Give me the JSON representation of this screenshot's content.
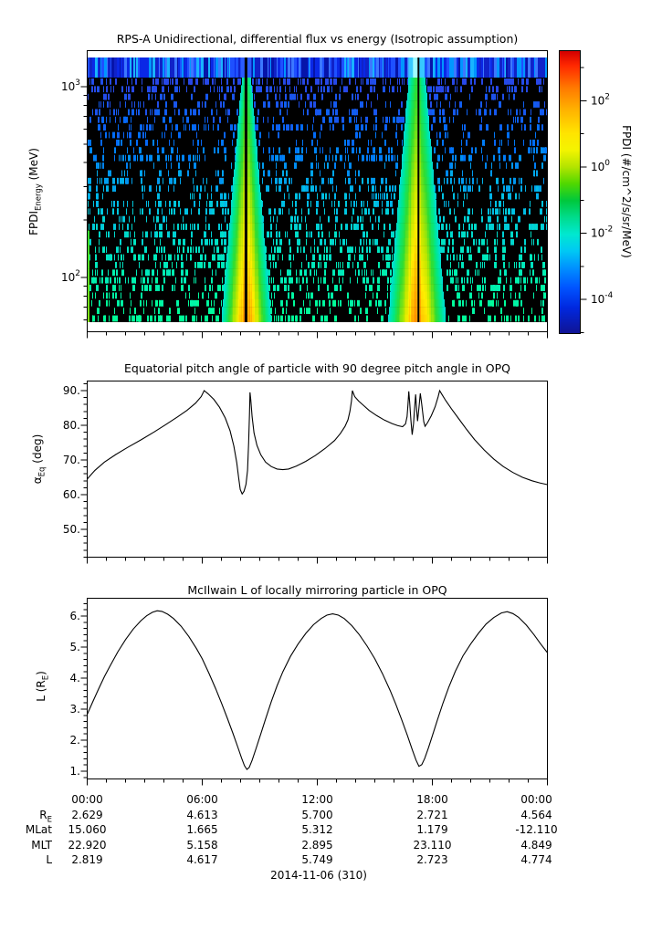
{
  "background": "#ffffff",
  "foreground": "#000000",
  "date_label": "2014-11-06 (310)",
  "xaxis": {
    "major_hours": [
      0,
      6,
      12,
      18,
      24
    ],
    "major_labels": [
      "00:00",
      "06:00",
      "12:00",
      "18:00",
      "00:00"
    ],
    "minor_step_hours": 1
  },
  "ephemeris_table": {
    "rows": [
      {
        "label_pre": "R",
        "label_sub": "E",
        "values": [
          "2.629",
          "4.613",
          "5.700",
          "2.721",
          "4.564"
        ]
      },
      {
        "label_pre": "MLat",
        "label_sub": "",
        "values": [
          "15.060",
          "1.665",
          "5.312",
          "1.179",
          "-12.110"
        ]
      },
      {
        "label_pre": "MLT",
        "label_sub": "",
        "values": [
          "22.920",
          "5.158",
          "2.895",
          "23.110",
          "4.849"
        ]
      },
      {
        "label_pre": "L",
        "label_sub": "",
        "values": [
          "2.819",
          "4.617",
          "5.749",
          "2.723",
          "4.774"
        ]
      }
    ]
  },
  "chart_data": [
    {
      "type": "heatmap",
      "title": "RPS-A Unidirectional, differential flux vs energy (Isotropic assumption)",
      "ylabel_pre": "FPDI",
      "ylabel_sub": "Energy",
      "ylabel_post": " (MeV)",
      "y_scale": "log",
      "y_range_mev": [
        50,
        1500
      ],
      "y_major_tick_exponents": [
        3,
        2
      ],
      "x_range_hours": [
        0,
        24
      ],
      "colorbar": {
        "label": "FPDI (#/cm^2/s/sr/MeV)",
        "scale": "log",
        "major_tick_exponents": [
          2,
          0,
          -2,
          -4
        ],
        "minor_tick_exponents": [
          3,
          1,
          -1,
          -3,
          -5
        ],
        "colormap": "jet",
        "top_color": "#d40000",
        "bottom_color": "#101496"
      },
      "features": {
        "background": "black (zero counts) with sparse speckles; speckle color trends royal blue at high energies to cyan/spring-green at low energies",
        "top_energy_band": {
          "description": "continuous blue band across all times in highest energy bin",
          "base_color": "#0a1ed2"
        },
        "perigee_plumes": [
          {
            "center_hour": 8.28,
            "half_width_hours_top": 0.25,
            "half_width_hours_bottom": 1.3,
            "center_gap": "black data-gap line",
            "colors": "cyan edge, green, yellow, orange core at lowest energies"
          },
          {
            "center_hour": 17.18,
            "half_width_hours_top": 0.45,
            "half_width_hours_bottom": 1.5,
            "center_gap": "black data-gap line",
            "colors": "cyan edge, green, yellow, orange core at lowest energies"
          }
        ],
        "left_edge_strip": {
          "hours": [
            0,
            0.15
          ],
          "color": "green, lowest energy rows only"
        }
      }
    },
    {
      "type": "line",
      "title": "Equatorial pitch angle of particle with 90 degree pitch angle in OPQ",
      "ylabel_pre": "α",
      "ylabel_sub": "Eq",
      "ylabel_post": " (deg)",
      "y_tick_values": [
        90,
        80,
        70,
        60,
        50
      ],
      "y_tick_labels": [
        "90.",
        "80.",
        "70.",
        "60.",
        "50."
      ],
      "y_minor_step": 2,
      "ylim": [
        42,
        93
      ],
      "x_units": "hours UTC",
      "points": [
        [
          0,
          64.5
        ],
        [
          0.4,
          67.0
        ],
        [
          0.9,
          69.4
        ],
        [
          1.5,
          71.6
        ],
        [
          2.1,
          73.6
        ],
        [
          2.8,
          75.8
        ],
        [
          3.5,
          78.1
        ],
        [
          4.1,
          80.2
        ],
        [
          4.7,
          82.4
        ],
        [
          5.2,
          84.3
        ],
        [
          5.65,
          86.4
        ],
        [
          5.95,
          88.3
        ],
        [
          6.1,
          90.0
        ],
        [
          6.3,
          89.1
        ],
        [
          6.6,
          87.5
        ],
        [
          6.9,
          85.2
        ],
        [
          7.2,
          82.1
        ],
        [
          7.45,
          78.4
        ],
        [
          7.65,
          74.0
        ],
        [
          7.8,
          69.2
        ],
        [
          7.9,
          64.8
        ],
        [
          7.98,
          61.5
        ],
        [
          8.08,
          60.2
        ],
        [
          8.18,
          61.0
        ],
        [
          8.28,
          63.0
        ],
        [
          8.36,
          67.0
        ],
        [
          8.42,
          75.0
        ],
        [
          8.46,
          83.0
        ],
        [
          8.49,
          89.5
        ],
        [
          8.53,
          87.5
        ],
        [
          8.6,
          82.5
        ],
        [
          8.7,
          77.8
        ],
        [
          8.85,
          74.2
        ],
        [
          9.05,
          71.5
        ],
        [
          9.3,
          69.4
        ],
        [
          9.6,
          68.1
        ],
        [
          9.9,
          67.4
        ],
        [
          10.2,
          67.2
        ],
        [
          10.5,
          67.4
        ],
        [
          10.9,
          68.2
        ],
        [
          11.4,
          69.6
        ],
        [
          11.9,
          71.3
        ],
        [
          12.4,
          73.3
        ],
        [
          12.9,
          75.6
        ],
        [
          13.2,
          77.6
        ],
        [
          13.45,
          79.7
        ],
        [
          13.6,
          81.6
        ],
        [
          13.7,
          84.0
        ],
        [
          13.78,
          87.0
        ],
        [
          13.83,
          90.0
        ],
        [
          13.95,
          88.3
        ],
        [
          14.15,
          87.0
        ],
        [
          14.4,
          85.8
        ],
        [
          14.7,
          84.3
        ],
        [
          15.1,
          82.8
        ],
        [
          15.5,
          81.5
        ],
        [
          15.9,
          80.5
        ],
        [
          16.2,
          79.9
        ],
        [
          16.45,
          79.6
        ],
        [
          16.6,
          80.4
        ],
        [
          16.68,
          82.5
        ],
        [
          16.73,
          86.0
        ],
        [
          16.77,
          89.8
        ],
        [
          16.82,
          86.5
        ],
        [
          16.88,
          81.5
        ],
        [
          16.95,
          77.3
        ],
        [
          17.02,
          80.5
        ],
        [
          17.08,
          85.5
        ],
        [
          17.13,
          88.9
        ],
        [
          17.18,
          84.5
        ],
        [
          17.23,
          81.2
        ],
        [
          17.3,
          85.0
        ],
        [
          17.37,
          89.2
        ],
        [
          17.45,
          86.0
        ],
        [
          17.55,
          81.0
        ],
        [
          17.62,
          79.7
        ],
        [
          17.75,
          80.8
        ],
        [
          17.95,
          82.8
        ],
        [
          18.15,
          85.4
        ],
        [
          18.3,
          88.2
        ],
        [
          18.38,
          90.0
        ],
        [
          18.5,
          88.9
        ],
        [
          18.7,
          87.1
        ],
        [
          19.0,
          84.7
        ],
        [
          19.4,
          81.7
        ],
        [
          19.8,
          78.7
        ],
        [
          20.2,
          75.9
        ],
        [
          20.7,
          72.9
        ],
        [
          21.2,
          70.3
        ],
        [
          21.7,
          68.1
        ],
        [
          22.2,
          66.4
        ],
        [
          22.7,
          65.0
        ],
        [
          23.2,
          64.0
        ],
        [
          23.6,
          63.4
        ],
        [
          24,
          62.9
        ]
      ]
    },
    {
      "type": "line",
      "title": "McIlwain L of locally mirroring particle in OPQ",
      "ylabel_pre": "L (R",
      "ylabel_sub": "E",
      "ylabel_post": ")",
      "y_tick_values": [
        6,
        5,
        4,
        3,
        2,
        1
      ],
      "y_tick_labels": [
        "6.",
        "5.",
        "4.",
        "3.",
        "2.",
        "1."
      ],
      "y_minor_step": 0.2,
      "ylim": [
        0.75,
        6.6
      ],
      "x_units": "hours UTC",
      "points": [
        [
          0,
          2.83
        ],
        [
          0.3,
          3.25
        ],
        [
          0.6,
          3.66
        ],
        [
          0.9,
          4.05
        ],
        [
          1.2,
          4.4
        ],
        [
          1.6,
          4.85
        ],
        [
          2.0,
          5.24
        ],
        [
          2.4,
          5.58
        ],
        [
          2.8,
          5.85
        ],
        [
          3.1,
          6.01
        ],
        [
          3.4,
          6.12
        ],
        [
          3.65,
          6.17
        ],
        [
          3.9,
          6.15
        ],
        [
          4.2,
          6.06
        ],
        [
          4.5,
          5.92
        ],
        [
          4.9,
          5.67
        ],
        [
          5.3,
          5.34
        ],
        [
          5.7,
          4.95
        ],
        [
          6.0,
          4.62
        ],
        [
          6.35,
          4.16
        ],
        [
          6.7,
          3.66
        ],
        [
          7.0,
          3.2
        ],
        [
          7.3,
          2.72
        ],
        [
          7.6,
          2.22
        ],
        [
          7.85,
          1.78
        ],
        [
          8.05,
          1.42
        ],
        [
          8.2,
          1.18
        ],
        [
          8.33,
          1.06
        ],
        [
          8.45,
          1.12
        ],
        [
          8.6,
          1.35
        ],
        [
          8.8,
          1.72
        ],
        [
          9.05,
          2.2
        ],
        [
          9.3,
          2.68
        ],
        [
          9.6,
          3.24
        ],
        [
          9.9,
          3.75
        ],
        [
          10.2,
          4.2
        ],
        [
          10.6,
          4.7
        ],
        [
          11.0,
          5.1
        ],
        [
          11.4,
          5.44
        ],
        [
          11.8,
          5.72
        ],
        [
          12.2,
          5.92
        ],
        [
          12.5,
          6.03
        ],
        [
          12.8,
          6.07
        ],
        [
          13.1,
          6.03
        ],
        [
          13.4,
          5.92
        ],
        [
          13.8,
          5.69
        ],
        [
          14.2,
          5.39
        ],
        [
          14.6,
          5.03
        ],
        [
          15.0,
          4.62
        ],
        [
          15.4,
          4.14
        ],
        [
          15.8,
          3.6
        ],
        [
          16.1,
          3.15
        ],
        [
          16.4,
          2.66
        ],
        [
          16.7,
          2.15
        ],
        [
          16.95,
          1.7
        ],
        [
          17.15,
          1.36
        ],
        [
          17.3,
          1.16
        ],
        [
          17.45,
          1.21
        ],
        [
          17.6,
          1.41
        ],
        [
          17.8,
          1.76
        ],
        [
          18.0,
          2.14
        ],
        [
          18.25,
          2.63
        ],
        [
          18.55,
          3.19
        ],
        [
          18.85,
          3.7
        ],
        [
          19.2,
          4.22
        ],
        [
          19.6,
          4.72
        ],
        [
          20.0,
          5.1
        ],
        [
          20.4,
          5.44
        ],
        [
          20.8,
          5.74
        ],
        [
          21.2,
          5.95
        ],
        [
          21.6,
          6.1
        ],
        [
          21.9,
          6.14
        ],
        [
          22.2,
          6.08
        ],
        [
          22.5,
          5.96
        ],
        [
          22.9,
          5.71
        ],
        [
          23.3,
          5.4
        ],
        [
          23.65,
          5.1
        ],
        [
          24,
          4.82
        ]
      ]
    }
  ]
}
